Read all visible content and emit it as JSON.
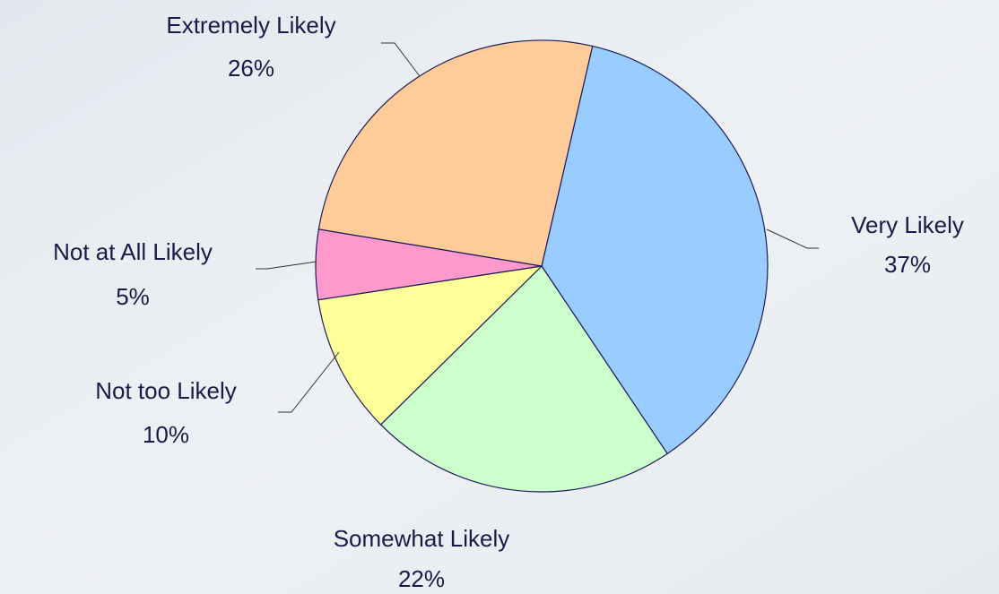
{
  "chart_data": {
    "type": "pie",
    "categories": [
      "Very Likely",
      "Somewhat Likely",
      "Not too Likely",
      "Not at All Likely",
      "Extremely Likely"
    ],
    "values": [
      37,
      22,
      10,
      5,
      26
    ],
    "value_labels": [
      "37%",
      "22%",
      "10%",
      "5%",
      "26%"
    ],
    "colors": [
      "#99ccff",
      "#ccffcc",
      "#ffff99",
      "#ff99cc",
      "#ffcc99"
    ]
  }
}
